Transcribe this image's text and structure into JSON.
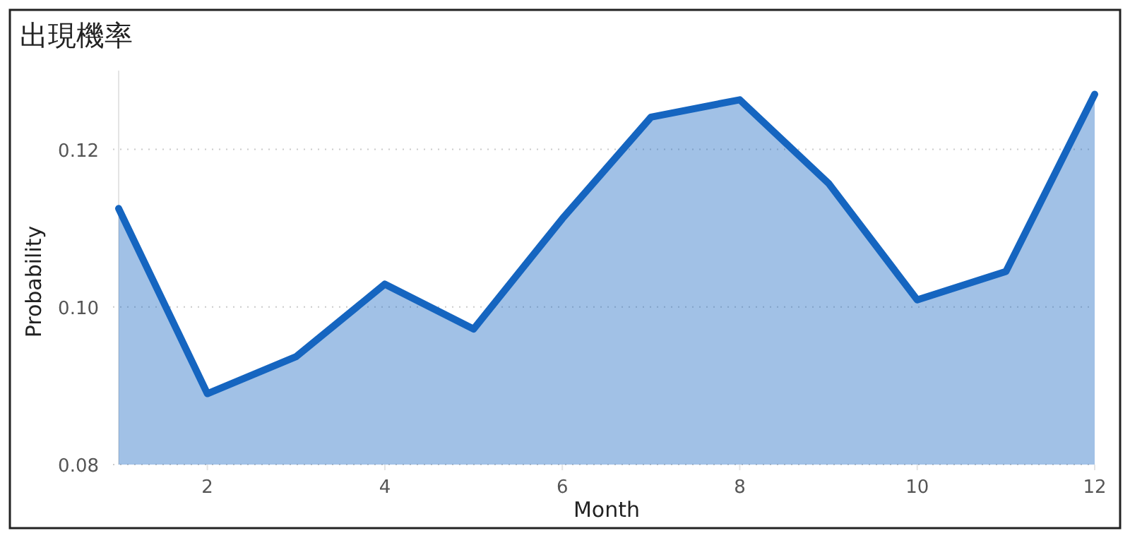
{
  "chart_data": {
    "type": "area",
    "title": "出現機率",
    "xlabel": "Month",
    "ylabel": "Probability",
    "x": [
      1,
      2,
      3,
      4,
      5,
      6,
      7,
      8,
      9,
      10,
      11,
      12
    ],
    "series": [
      {
        "color": "#1565c0",
        "values": [
          0.1125,
          0.089,
          0.0937,
          0.1029,
          0.0972,
          0.1112,
          0.1241,
          0.1263,
          0.1157,
          0.1009,
          0.1045,
          0.127
        ]
      }
    ],
    "xlim": [
      1,
      12
    ],
    "xticks": [
      2,
      4,
      6,
      8,
      10,
      12
    ],
    "ylim": [
      0.08,
      0.13
    ],
    "yticks": [
      0.08,
      {
        "value": 0.1,
        "label": "0.10"
      },
      0.12
    ],
    "grid": "y",
    "marker": "none",
    "line_style": "solid"
  }
}
